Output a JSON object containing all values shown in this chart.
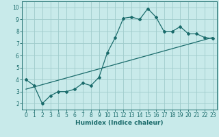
{
  "title": "",
  "xlabel": "Humidex (Indice chaleur)",
  "ylabel": "",
  "xlim": [
    -0.5,
    23.5
  ],
  "ylim": [
    1.5,
    10.5
  ],
  "xticks": [
    0,
    1,
    2,
    3,
    4,
    5,
    6,
    7,
    8,
    9,
    10,
    11,
    12,
    13,
    14,
    15,
    16,
    17,
    18,
    19,
    20,
    21,
    22,
    23
  ],
  "yticks": [
    2,
    3,
    4,
    5,
    6,
    7,
    8,
    9,
    10
  ],
  "bg_color": "#c8eaea",
  "line_color": "#1a6b6b",
  "grid_color": "#a0cccc",
  "line1_x": [
    0,
    1,
    2,
    3,
    4,
    5,
    6,
    7,
    8,
    9,
    10,
    11,
    12,
    13,
    14,
    15,
    16,
    17,
    18,
    19,
    20,
    21,
    22,
    23
  ],
  "line1_y": [
    4.0,
    3.5,
    2.0,
    2.65,
    3.0,
    3.0,
    3.2,
    3.7,
    3.5,
    4.2,
    6.2,
    7.5,
    9.1,
    9.2,
    9.0,
    9.9,
    9.2,
    8.0,
    8.0,
    8.4,
    7.8,
    7.8,
    7.5,
    7.4
  ],
  "line2_x": [
    0,
    23
  ],
  "line2_y": [
    3.2,
    7.5
  ],
  "tick_fontsize": 5.5,
  "xlabel_fontsize": 6.5
}
